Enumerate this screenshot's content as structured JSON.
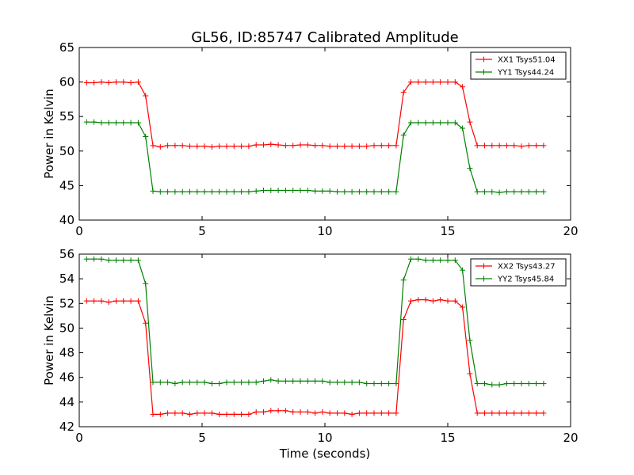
{
  "title": "GL56, ID:85747 Calibrated Amplitude",
  "xlabel": "Time (seconds)",
  "colors": {
    "red": "#ff0000",
    "green": "#008000"
  },
  "chart_data": [
    {
      "type": "line",
      "ylabel": "Power in Kelvin",
      "xlim": [
        0,
        20
      ],
      "ylim": [
        40,
        65
      ],
      "xticks": [
        0,
        5,
        10,
        15,
        20
      ],
      "yticks": [
        40,
        45,
        50,
        55,
        60,
        65
      ],
      "legend_position": "top-right",
      "x": [
        0.3,
        0.6,
        0.9,
        1.2,
        1.5,
        1.8,
        2.1,
        2.4,
        2.7,
        3.0,
        3.3,
        3.6,
        3.9,
        4.2,
        4.5,
        4.8,
        5.1,
        5.4,
        5.7,
        6.0,
        6.3,
        6.6,
        6.9,
        7.2,
        7.5,
        7.8,
        8.1,
        8.4,
        8.7,
        9.0,
        9.3,
        9.6,
        9.9,
        10.2,
        10.5,
        10.8,
        11.1,
        11.4,
        11.7,
        12.0,
        12.3,
        12.6,
        12.9,
        13.2,
        13.5,
        13.8,
        14.1,
        14.4,
        14.7,
        15.0,
        15.3,
        15.6,
        15.9,
        16.2,
        16.5,
        16.8,
        17.1,
        17.4,
        17.7,
        18.0,
        18.3,
        18.6,
        18.9
      ],
      "series": [
        {
          "name": "XX1 Tsys51.04",
          "color": "#ff0000",
          "values": [
            59.9,
            59.9,
            60.0,
            59.9,
            60.0,
            60.0,
            59.9,
            60.0,
            58.0,
            50.8,
            50.6,
            50.8,
            50.8,
            50.8,
            50.7,
            50.7,
            50.7,
            50.6,
            50.7,
            50.7,
            50.7,
            50.7,
            50.7,
            50.9,
            50.9,
            51.0,
            50.9,
            50.8,
            50.8,
            50.9,
            50.9,
            50.8,
            50.8,
            50.7,
            50.7,
            50.7,
            50.7,
            50.7,
            50.7,
            50.8,
            50.8,
            50.8,
            50.8,
            58.5,
            60.0,
            60.0,
            60.0,
            60.0,
            60.0,
            60.0,
            60.0,
            59.3,
            54.2,
            50.8,
            50.8,
            50.8,
            50.8,
            50.8,
            50.8,
            50.7,
            50.8,
            50.8,
            50.8
          ]
        },
        {
          "name": "YY1 Tsys44.24",
          "color": "#008000",
          "values": [
            54.2,
            54.2,
            54.1,
            54.1,
            54.1,
            54.1,
            54.1,
            54.1,
            52.1,
            44.2,
            44.1,
            44.1,
            44.1,
            44.1,
            44.1,
            44.1,
            44.1,
            44.1,
            44.1,
            44.1,
            44.1,
            44.1,
            44.1,
            44.2,
            44.3,
            44.3,
            44.3,
            44.3,
            44.3,
            44.3,
            44.3,
            44.2,
            44.2,
            44.2,
            44.1,
            44.1,
            44.1,
            44.1,
            44.1,
            44.1,
            44.1,
            44.1,
            44.1,
            52.3,
            54.1,
            54.1,
            54.1,
            54.1,
            54.1,
            54.1,
            54.1,
            53.3,
            47.5,
            44.1,
            44.1,
            44.1,
            44.0,
            44.1,
            44.1,
            44.1,
            44.1,
            44.1,
            44.1
          ]
        }
      ]
    },
    {
      "type": "line",
      "ylabel": "Power in Kelvin",
      "xlabel": "Time (seconds)",
      "xlim": [
        0,
        20
      ],
      "ylim": [
        42,
        56
      ],
      "xticks": [
        0,
        5,
        10,
        15,
        20
      ],
      "yticks": [
        42,
        44,
        46,
        48,
        50,
        52,
        54,
        56
      ],
      "legend_position": "top-right",
      "x": [
        0.3,
        0.6,
        0.9,
        1.2,
        1.5,
        1.8,
        2.1,
        2.4,
        2.7,
        3.0,
        3.3,
        3.6,
        3.9,
        4.2,
        4.5,
        4.8,
        5.1,
        5.4,
        5.7,
        6.0,
        6.3,
        6.6,
        6.9,
        7.2,
        7.5,
        7.8,
        8.1,
        8.4,
        8.7,
        9.0,
        9.3,
        9.6,
        9.9,
        10.2,
        10.5,
        10.8,
        11.1,
        11.4,
        11.7,
        12.0,
        12.3,
        12.6,
        12.9,
        13.2,
        13.5,
        13.8,
        14.1,
        14.4,
        14.7,
        15.0,
        15.3,
        15.6,
        15.9,
        16.2,
        16.5,
        16.8,
        17.1,
        17.4,
        17.7,
        18.0,
        18.3,
        18.6,
        18.9
      ],
      "series": [
        {
          "name": "XX2 Tsys43.27",
          "color": "#ff0000",
          "values": [
            52.2,
            52.2,
            52.2,
            52.1,
            52.2,
            52.2,
            52.2,
            52.2,
            50.4,
            43.0,
            43.0,
            43.1,
            43.1,
            43.1,
            43.0,
            43.1,
            43.1,
            43.1,
            43.0,
            43.0,
            43.0,
            43.0,
            43.0,
            43.2,
            43.2,
            43.3,
            43.3,
            43.3,
            43.2,
            43.2,
            43.2,
            43.1,
            43.2,
            43.1,
            43.1,
            43.1,
            43.0,
            43.1,
            43.1,
            43.1,
            43.1,
            43.1,
            43.1,
            50.7,
            52.2,
            52.3,
            52.3,
            52.2,
            52.3,
            52.2,
            52.2,
            51.7,
            46.3,
            43.1,
            43.1,
            43.1,
            43.1,
            43.1,
            43.1,
            43.1,
            43.1,
            43.1,
            43.1
          ]
        },
        {
          "name": "YY2 Tsys45.84",
          "color": "#008000",
          "values": [
            55.6,
            55.6,
            55.6,
            55.5,
            55.5,
            55.5,
            55.5,
            55.5,
            53.6,
            45.6,
            45.6,
            45.6,
            45.5,
            45.6,
            45.6,
            45.6,
            45.6,
            45.5,
            45.5,
            45.6,
            45.6,
            45.6,
            45.6,
            45.6,
            45.7,
            45.8,
            45.7,
            45.7,
            45.7,
            45.7,
            45.7,
            45.7,
            45.7,
            45.6,
            45.6,
            45.6,
            45.6,
            45.6,
            45.5,
            45.5,
            45.5,
            45.5,
            45.5,
            53.9,
            55.6,
            55.6,
            55.5,
            55.5,
            55.5,
            55.5,
            55.5,
            54.7,
            49.0,
            45.5,
            45.5,
            45.4,
            45.4,
            45.5,
            45.5,
            45.5,
            45.5,
            45.5,
            45.5
          ]
        }
      ]
    }
  ]
}
